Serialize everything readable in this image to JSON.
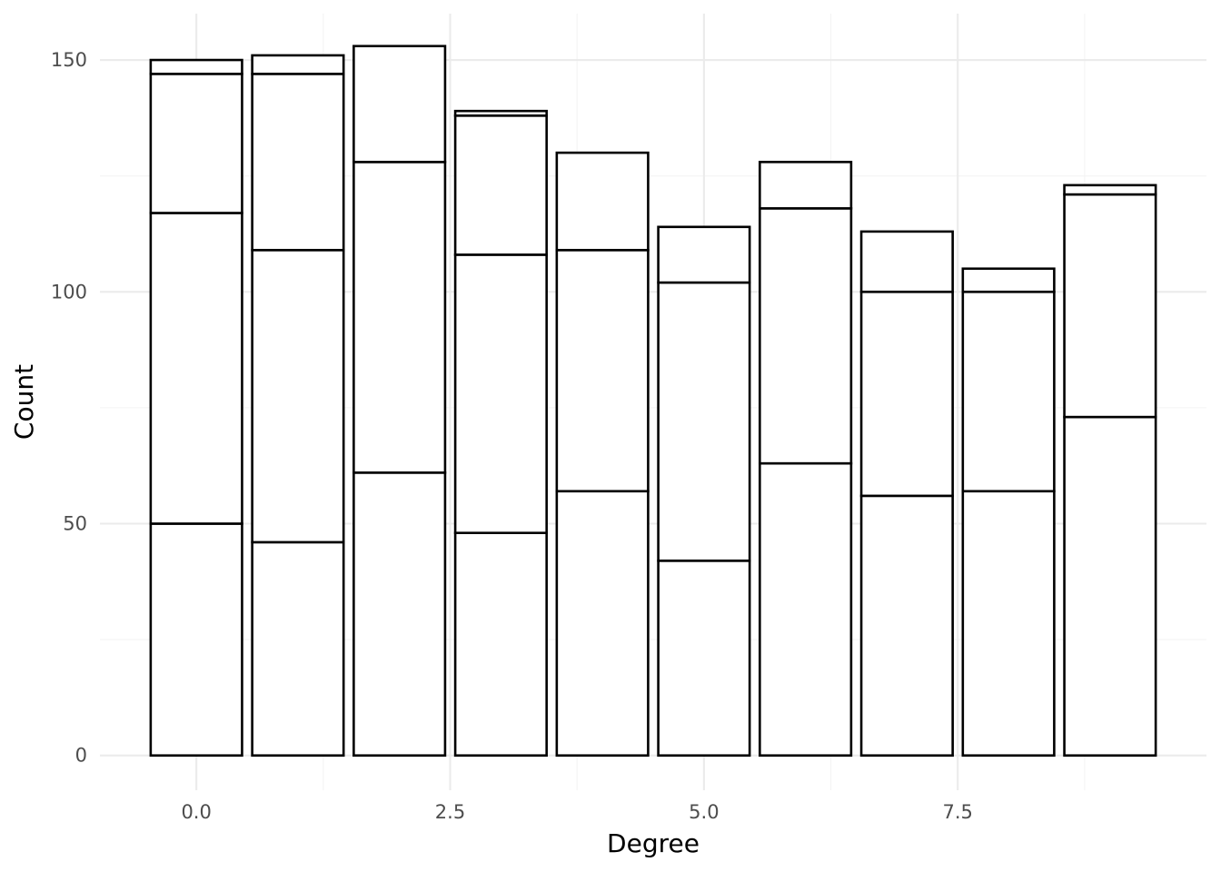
{
  "chart_data": {
    "type": "bar",
    "stacked": true,
    "title": "",
    "xlabel": "Degree",
    "ylabel": "Count",
    "x": [
      0,
      1,
      2,
      3,
      4,
      5,
      6,
      7,
      8,
      9
    ],
    "stacks": [
      [
        50,
        67,
        30,
        3
      ],
      [
        46,
        63,
        38,
        4
      ],
      [
        61,
        67,
        25
      ],
      [
        48,
        60,
        30,
        1
      ],
      [
        57,
        52,
        21
      ],
      [
        42,
        60,
        12
      ],
      [
        63,
        55,
        10
      ],
      [
        56,
        44,
        13
      ],
      [
        57,
        43,
        5
      ],
      [
        73,
        48,
        2
      ]
    ],
    "totals": [
      150,
      151,
      153,
      139,
      130,
      114,
      128,
      113,
      105,
      123
    ],
    "xlim": [
      -0.95,
      9.95
    ],
    "ylim": [
      -7.5,
      160
    ],
    "xticks": [
      0.0,
      2.5,
      5.0,
      7.5
    ],
    "xtick_labels": [
      "0.0",
      "2.5",
      "5.0",
      "7.5"
    ],
    "yticks": [
      0,
      50,
      100,
      150
    ],
    "ytick_labels": [
      "0",
      "50",
      "100",
      "150"
    ],
    "bar_width": 0.9,
    "fill": "#ffffff",
    "outline": "#000000",
    "grid": true,
    "legend": "none"
  }
}
